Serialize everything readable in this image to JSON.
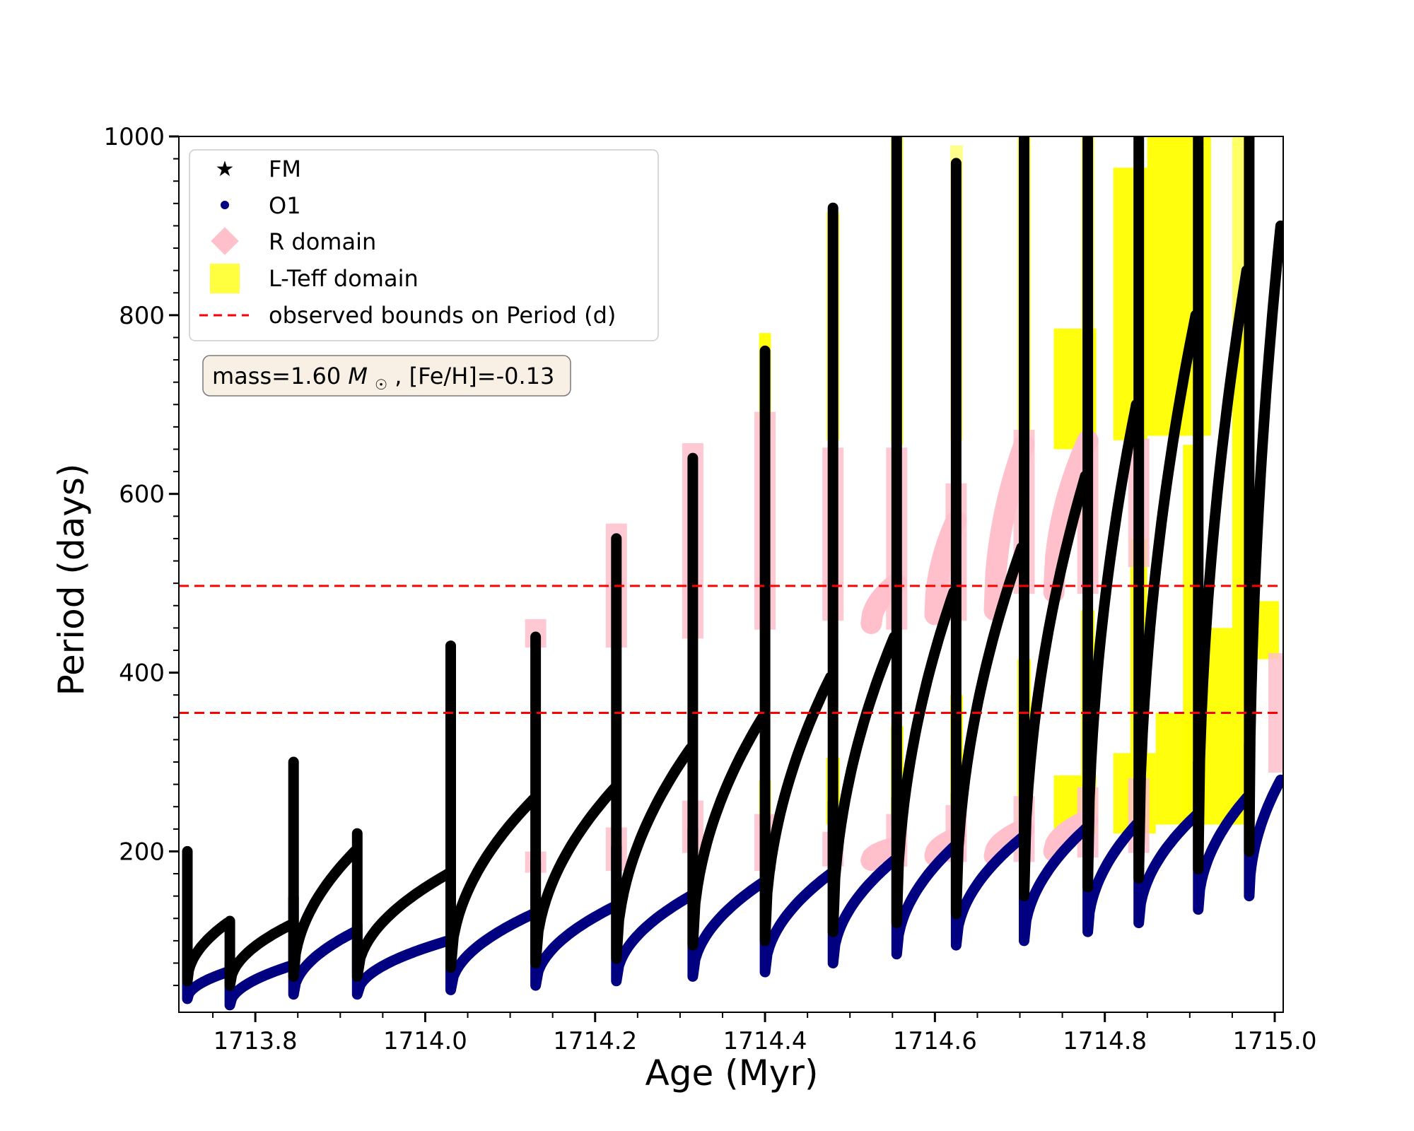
{
  "chart_data": {
    "type": "scatter",
    "xlabel": "Age (Myr)",
    "ylabel": "Period (days)",
    "xlim": [
      1713.71,
      1715.01
    ],
    "ylim": [
      20,
      1000
    ],
    "x_ticks": [
      1713.8,
      1714.0,
      1714.2,
      1714.4,
      1714.6,
      1714.8,
      1715.0
    ],
    "x_tick_labels": [
      "1713.8",
      "1714.0",
      "1714.2",
      "1714.4",
      "1714.6",
      "1714.8",
      "1715.0"
    ],
    "y_ticks": [
      200,
      400,
      600,
      800,
      1000
    ],
    "y_tick_labels": [
      "200",
      "400",
      "600",
      "800",
      "1000"
    ],
    "grid": false,
    "legend_position": "top-left",
    "annotation": {
      "text_prefix": "mass=1.60",
      "mass_symbol": "M",
      "text_suffix": ", [Fe/H]=-0.13"
    },
    "legend": [
      {
        "label": "FM",
        "marker": "star",
        "color": "#000000"
      },
      {
        "label": "O1",
        "marker": "circle",
        "color": "#000080"
      },
      {
        "label": "R domain",
        "marker": "diamond",
        "color": "#ffc0cb"
      },
      {
        "label": "L-Teff domain",
        "marker": "square",
        "color": "#ffff00"
      },
      {
        "label": "observed bounds on Period (d)",
        "marker": "dashed-line",
        "color": "#ff0000"
      }
    ],
    "observed_bounds": [
      355,
      497
    ],
    "series": [
      {
        "name": "FM",
        "color": "#000000",
        "pulses": [
          {
            "start": 1713.72,
            "low": 55,
            "peak": 120,
            "spike": 200
          },
          {
            "start": 1713.77,
            "low": 50,
            "peak": 118,
            "spike": 122
          },
          {
            "start": 1713.845,
            "low": 60,
            "peak": 200,
            "spike": 300
          },
          {
            "start": 1713.92,
            "low": 60,
            "peak": 175,
            "spike": 220
          },
          {
            "start": 1714.03,
            "low": 70,
            "peak": 258,
            "spike": 430
          },
          {
            "start": 1714.13,
            "low": 75,
            "peak": 270,
            "spike": 440
          },
          {
            "start": 1714.225,
            "low": 80,
            "peak": 315,
            "spike": 550
          },
          {
            "start": 1714.315,
            "low": 95,
            "peak": 350,
            "spike": 640
          },
          {
            "start": 1714.4,
            "low": 100,
            "peak": 395,
            "spike": 760
          },
          {
            "start": 1714.48,
            "low": 110,
            "peak": 440,
            "spike": 920
          },
          {
            "start": 1714.555,
            "low": 120,
            "peak": 490,
            "spike": 1000
          },
          {
            "start": 1714.625,
            "low": 130,
            "peak": 540,
            "spike": 970
          },
          {
            "start": 1714.705,
            "low": 150,
            "peak": 620,
            "spike": 1000
          },
          {
            "start": 1714.78,
            "low": 160,
            "peak": 700,
            "spike": 1000
          },
          {
            "start": 1714.84,
            "low": 170,
            "peak": 800,
            "spike": 1000
          },
          {
            "start": 1714.91,
            "low": 180,
            "peak": 850,
            "spike": 1000
          },
          {
            "start": 1714.97,
            "low": 200,
            "peak": 900,
            "spike": 1000
          }
        ]
      },
      {
        "name": "O1",
        "color": "#000080",
        "pulses": [
          {
            "start": 1713.72,
            "low": 35,
            "peak": 65,
            "spike": 108
          },
          {
            "start": 1713.77,
            "low": 28,
            "peak": 72,
            "spike": 75
          },
          {
            "start": 1713.845,
            "low": 40,
            "peak": 110,
            "spike": 148
          },
          {
            "start": 1713.92,
            "low": 40,
            "peak": 100,
            "spike": 118
          },
          {
            "start": 1714.03,
            "low": 45,
            "peak": 130,
            "spike": 185
          },
          {
            "start": 1714.13,
            "low": 50,
            "peak": 138,
            "spike": 188
          },
          {
            "start": 1714.225,
            "low": 55,
            "peak": 150,
            "spike": 205
          },
          {
            "start": 1714.315,
            "low": 60,
            "peak": 165,
            "spike": 225
          },
          {
            "start": 1714.4,
            "low": 65,
            "peak": 175,
            "spike": 240
          },
          {
            "start": 1714.48,
            "low": 75,
            "peak": 190,
            "spike": 255
          },
          {
            "start": 1714.555,
            "low": 85,
            "peak": 205,
            "spike": 260
          },
          {
            "start": 1714.625,
            "low": 95,
            "peak": 215,
            "spike": 265
          },
          {
            "start": 1714.705,
            "low": 100,
            "peak": 225,
            "spike": 270
          },
          {
            "start": 1714.78,
            "low": 110,
            "peak": 230,
            "spike": 275
          },
          {
            "start": 1714.84,
            "low": 120,
            "peak": 240,
            "spike": 280
          },
          {
            "start": 1714.91,
            "low": 135,
            "peak": 260,
            "spike": 300
          },
          {
            "start": 1714.97,
            "low": 150,
            "peak": 280,
            "spike": 320
          }
        ]
      },
      {
        "name": "R domain",
        "color": "#ffc0cb",
        "segments": [
          {
            "x": 1714.13,
            "y0": 188,
            "y1": 188
          },
          {
            "x": 1714.13,
            "y0": 440,
            "y1": 448
          },
          {
            "x": 1714.225,
            "y0": 190,
            "y1": 215
          },
          {
            "x": 1714.225,
            "y0": 440,
            "y1": 555
          },
          {
            "x": 1714.315,
            "y0": 210,
            "y1": 245
          },
          {
            "x": 1714.315,
            "y0": 450,
            "y1": 645
          },
          {
            "x": 1714.4,
            "y0": 190,
            "y1": 230
          },
          {
            "x": 1714.4,
            "y0": 460,
            "y1": 680
          },
          {
            "x": 1714.48,
            "y0": 195,
            "y1": 210
          },
          {
            "x": 1714.48,
            "y0": 470,
            "y1": 640
          },
          {
            "x": 1714.555,
            "y0": 195,
            "y1": 230
          },
          {
            "x": 1714.555,
            "y0": 460,
            "y1": 640
          },
          {
            "x": 1714.625,
            "y0": 200,
            "y1": 240
          },
          {
            "x": 1714.625,
            "y0": 470,
            "y1": 600
          },
          {
            "x": 1714.705,
            "y0": 200,
            "y1": 250
          },
          {
            "x": 1714.705,
            "y0": 500,
            "y1": 660
          },
          {
            "x": 1714.78,
            "y0": 205,
            "y1": 260
          },
          {
            "x": 1714.78,
            "y0": 500,
            "y1": 650
          },
          {
            "x": 1714.84,
            "y0": 210,
            "y1": 270
          },
          {
            "x": 1714.84,
            "y0": 530,
            "y1": 650
          },
          {
            "x": 1715.005,
            "y0": 300,
            "y1": 410
          }
        ],
        "arcs": [
          {
            "x0": 1714.525,
            "x1": 1714.555,
            "y0": 455,
            "y1": 500
          },
          {
            "x0": 1714.6,
            "x1": 1714.625,
            "y0": 465,
            "y1": 570
          },
          {
            "x0": 1714.67,
            "x1": 1714.705,
            "y0": 470,
            "y1": 655
          },
          {
            "x0": 1714.74,
            "x1": 1714.78,
            "y0": 490,
            "y1": 660
          },
          {
            "x0": 1714.525,
            "x1": 1714.555,
            "y0": 190,
            "y1": 205
          },
          {
            "x0": 1714.6,
            "x1": 1714.625,
            "y0": 195,
            "y1": 215
          },
          {
            "x0": 1714.67,
            "x1": 1714.705,
            "y0": 195,
            "y1": 225
          },
          {
            "x0": 1714.74,
            "x1": 1714.78,
            "y0": 200,
            "y1": 235
          }
        ]
      },
      {
        "name": "L-Teff domain",
        "color": "#ffff00",
        "blocks": [
          {
            "x0": 1714.393,
            "x1": 1714.407,
            "y0": 668,
            "y1": 780,
            "a": 0.95
          },
          {
            "x0": 1714.393,
            "x1": 1714.407,
            "y0": 230,
            "y1": 280,
            "a": 0.95
          },
          {
            "x0": 1714.472,
            "x1": 1714.488,
            "y0": 660,
            "y1": 915,
            "a": 0.55
          },
          {
            "x0": 1714.472,
            "x1": 1714.488,
            "y0": 230,
            "y1": 305,
            "a": 0.95
          },
          {
            "x0": 1714.548,
            "x1": 1714.563,
            "y0": 655,
            "y1": 1000,
            "a": 0.55
          },
          {
            "x0": 1714.548,
            "x1": 1714.563,
            "y0": 230,
            "y1": 340,
            "a": 0.95
          },
          {
            "x0": 1714.618,
            "x1": 1714.633,
            "y0": 660,
            "y1": 990,
            "a": 0.45
          },
          {
            "x0": 1714.618,
            "x1": 1714.633,
            "y0": 230,
            "y1": 375,
            "a": 0.95
          },
          {
            "x0": 1714.697,
            "x1": 1714.713,
            "y0": 660,
            "y1": 1000,
            "a": 0.55
          },
          {
            "x0": 1714.697,
            "x1": 1714.713,
            "y0": 230,
            "y1": 415,
            "a": 0.95
          },
          {
            "x0": 1714.74,
            "x1": 1714.79,
            "y0": 650,
            "y1": 785,
            "a": 0.95
          },
          {
            "x0": 1714.772,
            "x1": 1714.788,
            "y0": 660,
            "y1": 1000,
            "a": 0.45
          },
          {
            "x0": 1714.772,
            "x1": 1714.788,
            "y0": 220,
            "y1": 470,
            "a": 0.95
          },
          {
            "x0": 1714.74,
            "x1": 1714.79,
            "y0": 220,
            "y1": 285,
            "a": 0.95
          },
          {
            "x0": 1714.81,
            "x1": 1714.85,
            "y0": 660,
            "y1": 965,
            "a": 0.95
          },
          {
            "x0": 1714.83,
            "x1": 1714.85,
            "y0": 230,
            "y1": 550,
            "a": 0.95
          },
          {
            "x0": 1714.81,
            "x1": 1714.86,
            "y0": 220,
            "y1": 310,
            "a": 0.95
          },
          {
            "x0": 1714.85,
            "x1": 1714.9,
            "y0": 665,
            "y1": 1000,
            "a": 0.95
          },
          {
            "x0": 1714.86,
            "x1": 1714.92,
            "y0": 230,
            "y1": 355,
            "a": 0.95
          },
          {
            "x0": 1714.9,
            "x1": 1714.925,
            "y0": 665,
            "y1": 1000,
            "a": 0.95
          },
          {
            "x0": 1714.892,
            "x1": 1714.912,
            "y0": 230,
            "y1": 655,
            "a": 0.95
          },
          {
            "x0": 1714.912,
            "x1": 1714.95,
            "y0": 230,
            "y1": 450,
            "a": 0.95
          },
          {
            "x0": 1714.95,
            "x1": 1714.975,
            "y0": 750,
            "y1": 1000,
            "a": 0.6
          },
          {
            "x0": 1714.95,
            "x1": 1714.975,
            "y0": 230,
            "y1": 780,
            "a": 0.95
          },
          {
            "x0": 1714.975,
            "x1": 1715.005,
            "y0": 415,
            "y1": 480,
            "a": 0.95
          }
        ]
      }
    ]
  }
}
